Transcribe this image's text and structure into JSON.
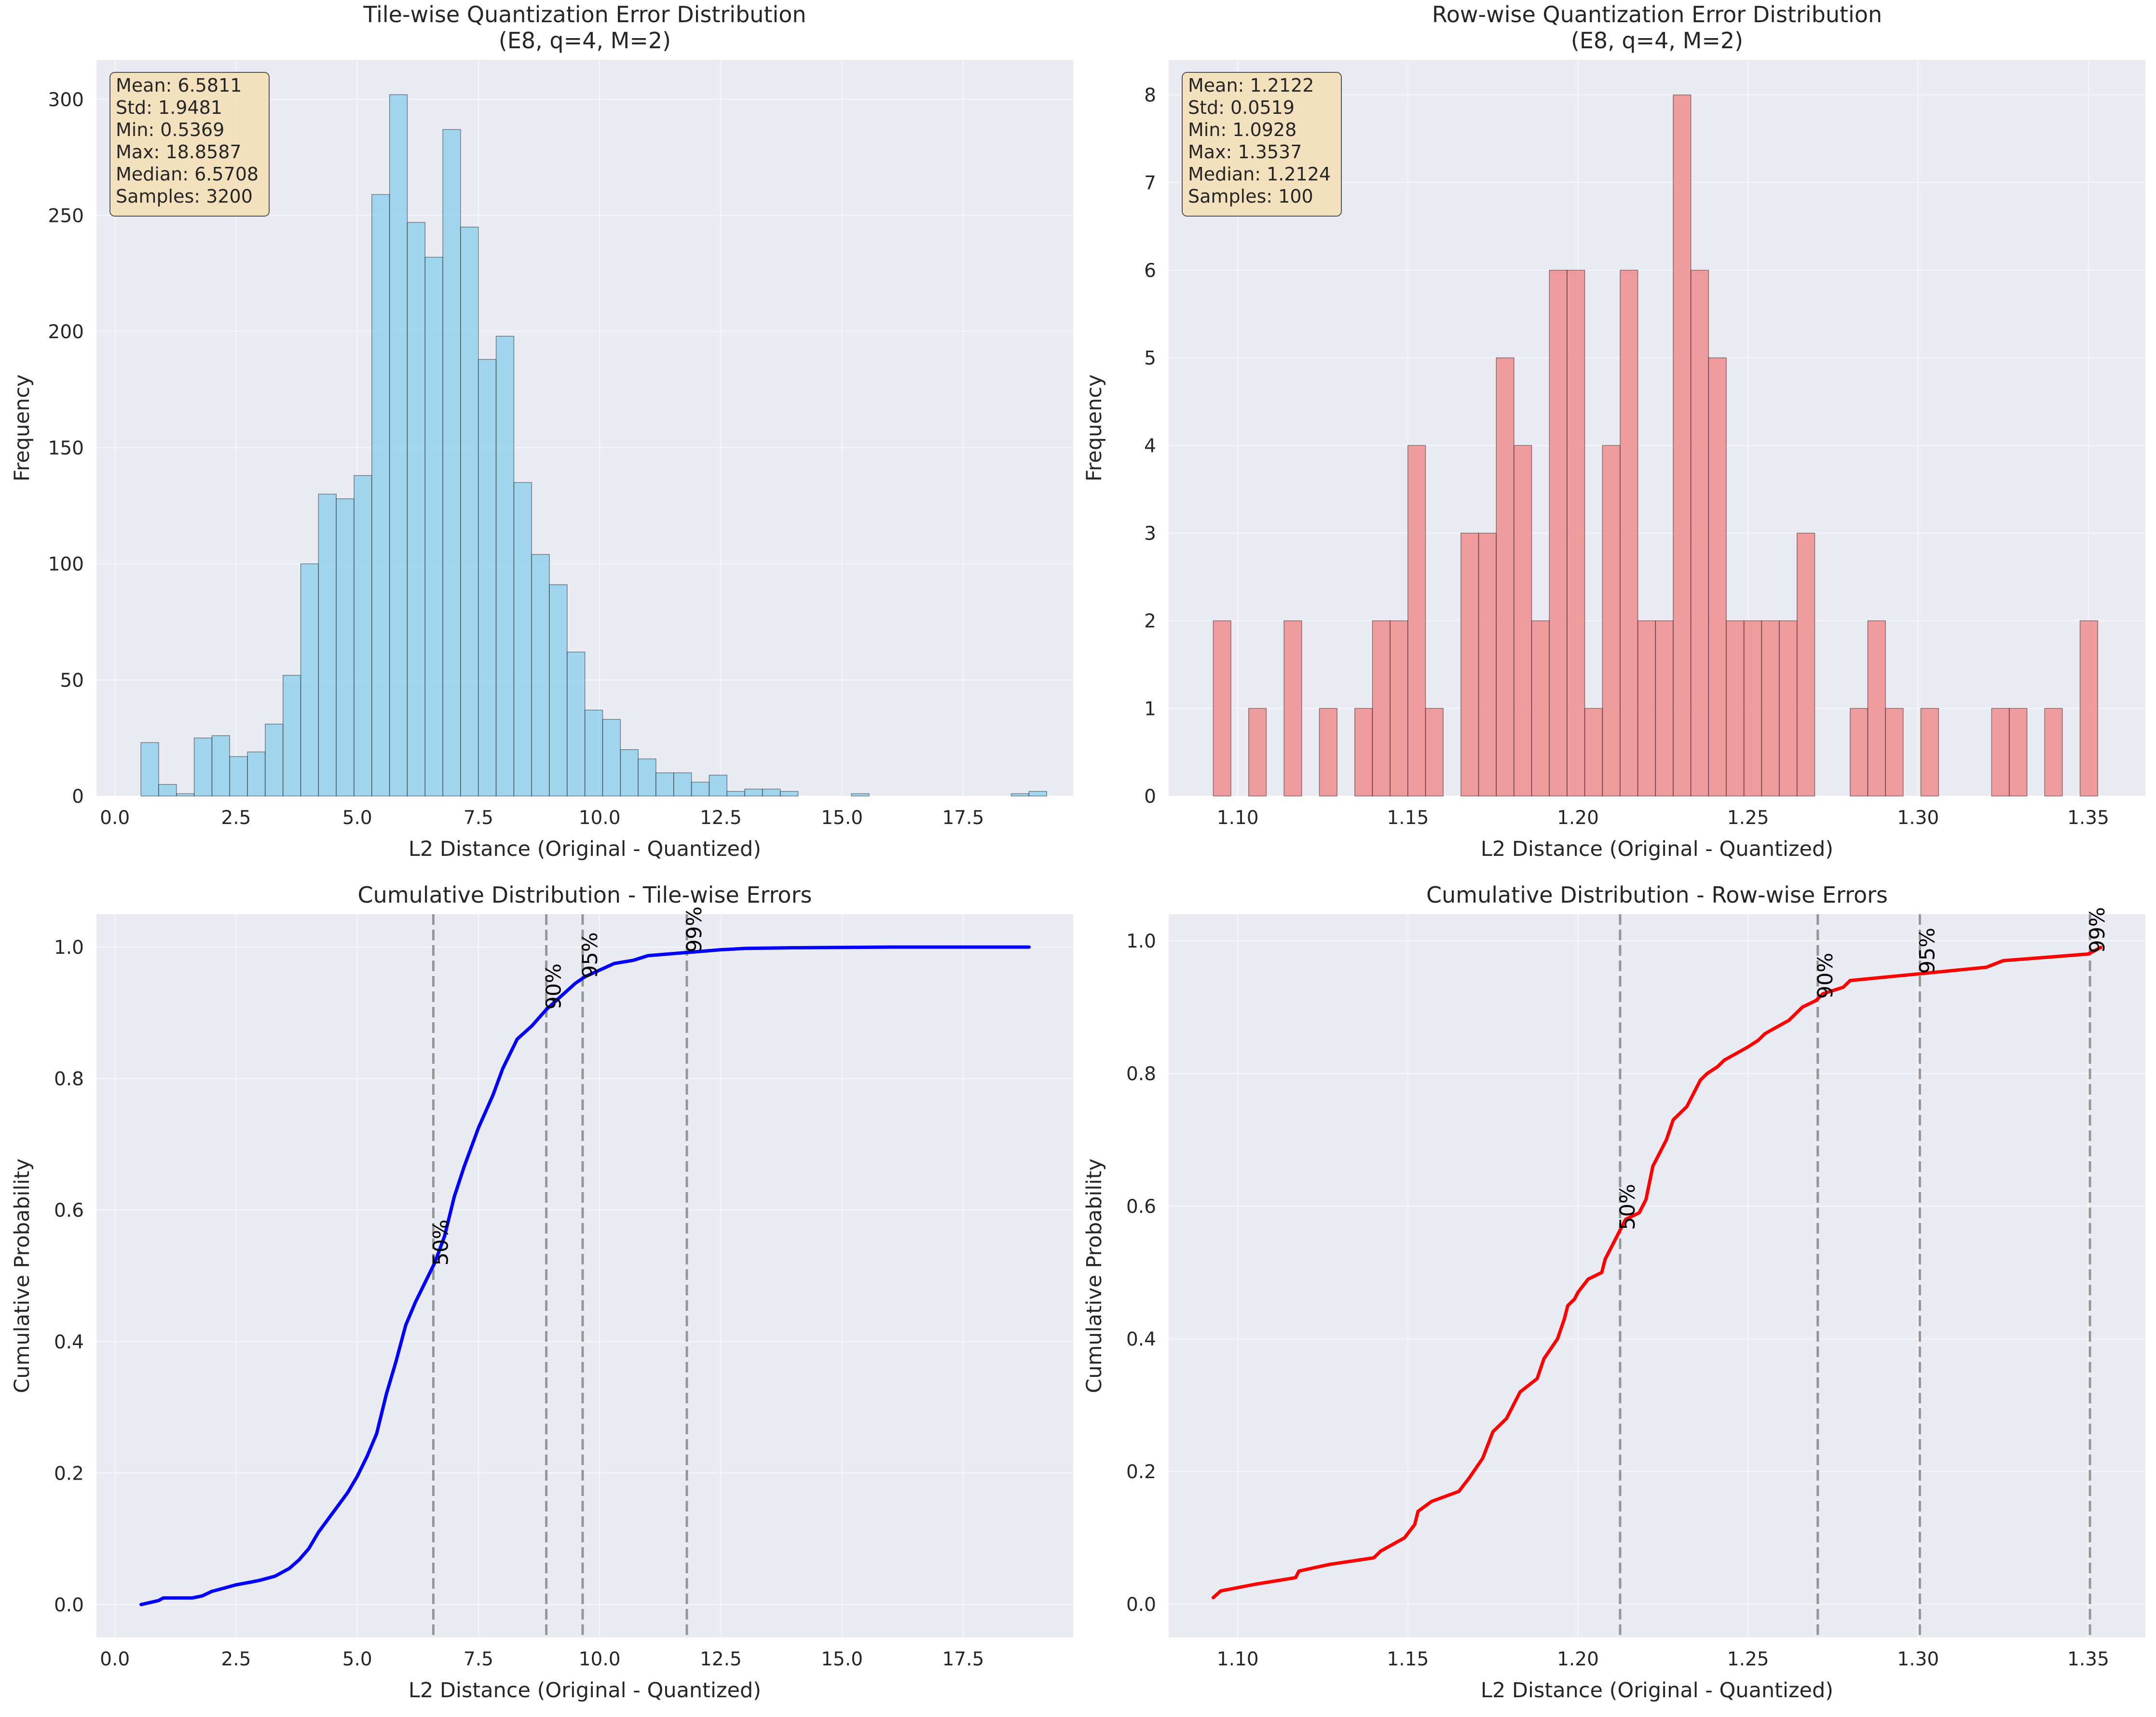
{
  "colors": {
    "axes_bg": "#eaeaf2",
    "grid": "#ffffff",
    "tile_bar": "#87ceeb",
    "row_bar": "#f08080",
    "bar_edge": "#000000",
    "tile_cdf": "#0000ff",
    "row_cdf": "#ff0000",
    "percentile_line": "#808080",
    "stats_box_fill": "#f5deb3"
  },
  "chart_data": [
    {
      "id": "tile_hist",
      "type": "bar",
      "title": "Tile-wise Quantization Error Distribution\n(E8, q=4, M=2)",
      "xlabel": "L2 Distance (Original - Quantized)",
      "ylabel": "Frequency",
      "xlim": [
        -0.38,
        19.77
      ],
      "ylim": [
        0,
        317
      ],
      "xticks": [
        0.0,
        2.5,
        5.0,
        7.5,
        10.0,
        12.5,
        15.0,
        17.5
      ],
      "xtick_labels": [
        "0.0",
        "2.5",
        "5.0",
        "7.5",
        "10.0",
        "12.5",
        "15.0",
        "17.5"
      ],
      "yticks": [
        0,
        50,
        100,
        150,
        200,
        250,
        300
      ],
      "ytick_labels": [
        "0",
        "50",
        "100",
        "150",
        "200",
        "250",
        "300"
      ],
      "grid": true,
      "bin_start": 0.5369,
      "bin_width": 0.3664,
      "values": [
        23,
        5,
        1,
        25,
        26,
        17,
        19,
        31,
        52,
        100,
        130,
        128,
        138,
        259,
        302,
        247,
        232,
        287,
        245,
        188,
        198,
        135,
        104,
        91,
        62,
        37,
        33,
        20,
        16,
        10,
        10,
        6,
        9,
        2,
        3,
        3,
        2,
        0,
        0,
        0,
        1,
        0,
        0,
        0,
        0,
        0,
        0,
        0,
        0,
        1,
        2
      ],
      "stats_box": {
        "lines": [
          "Mean: 6.5811",
          "Std: 1.9481",
          "Min: 0.5369",
          "Max: 18.8587",
          "Median: 6.5708",
          "Samples: 3200"
        ],
        "placement": "top-left"
      }
    },
    {
      "id": "row_hist",
      "type": "bar",
      "title": "Row-wise Quantization Error Distribution\n(E8, q=4, M=2)",
      "xlabel": "L2 Distance (Original - Quantized)",
      "ylabel": "Frequency",
      "xlim": [
        1.0797,
        1.3668
      ],
      "ylim": [
        0,
        8.4
      ],
      "xticks": [
        1.1,
        1.15,
        1.2,
        1.25,
        1.3,
        1.35
      ],
      "xtick_labels": [
        "1.10",
        "1.15",
        "1.20",
        "1.25",
        "1.30",
        "1.35"
      ],
      "yticks": [
        0,
        1,
        2,
        3,
        4,
        5,
        6,
        7,
        8
      ],
      "ytick_labels": [
        "0",
        "1",
        "2",
        "3",
        "4",
        "5",
        "6",
        "7",
        "8"
      ],
      "grid": true,
      "bin_start": 1.0928,
      "bin_width": 0.0052,
      "values": [
        2,
        0,
        1,
        0,
        2,
        0,
        1,
        0,
        1,
        2,
        2,
        4,
        1,
        0,
        3,
        3,
        5,
        4,
        2,
        6,
        6,
        1,
        4,
        6,
        2,
        2,
        8,
        6,
        5,
        2,
        2,
        2,
        2,
        3,
        0,
        0,
        1,
        2,
        1,
        0,
        1,
        0,
        0,
        0,
        1,
        1,
        0,
        1,
        0,
        2
      ],
      "stats_box": {
        "lines": [
          "Mean: 1.2122",
          "Std: 0.0519",
          "Min: 1.0928",
          "Max: 1.3537",
          "Median: 1.2124",
          "Samples: 100"
        ],
        "placement": "top-left"
      }
    },
    {
      "id": "tile_cdf",
      "type": "line",
      "title": "Cumulative Distribution - Tile-wise Errors",
      "xlabel": "L2 Distance (Original - Quantized)",
      "ylabel": "Cumulative Probability",
      "xlim": [
        -0.38,
        19.77
      ],
      "ylim": [
        -0.05,
        1.05
      ],
      "xticks": [
        0.0,
        2.5,
        5.0,
        7.5,
        10.0,
        12.5,
        15.0,
        17.5
      ],
      "xtick_labels": [
        "0.0",
        "2.5",
        "5.0",
        "7.5",
        "10.0",
        "12.5",
        "15.0",
        "17.5"
      ],
      "yticks": [
        0.0,
        0.2,
        0.4,
        0.6,
        0.8,
        1.0
      ],
      "ytick_labels": [
        "0.0",
        "0.2",
        "0.4",
        "0.6",
        "0.8",
        "1.0"
      ],
      "grid": true,
      "x": [
        0.54,
        0.9,
        1.0,
        1.6,
        1.8,
        2.0,
        2.2,
        2.5,
        2.8,
        3.0,
        3.3,
        3.6,
        3.8,
        4.0,
        4.2,
        4.4,
        4.6,
        4.8,
        5.0,
        5.2,
        5.4,
        5.6,
        5.8,
        6.0,
        6.2,
        6.4,
        6.6,
        6.8,
        7.0,
        7.2,
        7.5,
        7.8,
        8.0,
        8.3,
        8.6,
        8.9,
        9.2,
        9.5,
        9.7,
        10.0,
        10.3,
        10.7,
        11.0,
        11.5,
        12.0,
        12.5,
        13.0,
        14.0,
        16.0,
        18.86
      ],
      "values": [
        0.0,
        0.006,
        0.01,
        0.01,
        0.013,
        0.02,
        0.024,
        0.03,
        0.034,
        0.037,
        0.043,
        0.055,
        0.068,
        0.085,
        0.11,
        0.13,
        0.15,
        0.17,
        0.195,
        0.225,
        0.26,
        0.32,
        0.37,
        0.425,
        0.46,
        0.49,
        0.52,
        0.56,
        0.62,
        0.665,
        0.725,
        0.775,
        0.815,
        0.86,
        0.88,
        0.905,
        0.925,
        0.945,
        0.955,
        0.965,
        0.975,
        0.98,
        0.987,
        0.99,
        0.993,
        0.996,
        0.998,
        0.999,
        1.0,
        1.0
      ],
      "percentiles": [
        {
          "label": "50%",
          "x": 6.57
        },
        {
          "label": "90%",
          "x": 8.9
        },
        {
          "label": "95%",
          "x": 9.65
        },
        {
          "label": "99%",
          "x": 11.8
        }
      ]
    },
    {
      "id": "row_cdf",
      "type": "line",
      "title": "Cumulative Distribution - Row-wise Errors",
      "xlabel": "L2 Distance (Original - Quantized)",
      "ylabel": "Cumulative Probability",
      "xlim": [
        1.0797,
        1.3668
      ],
      "ylim": [
        -0.05,
        1.04
      ],
      "xticks": [
        1.1,
        1.15,
        1.2,
        1.25,
        1.3,
        1.35
      ],
      "xtick_labels": [
        "1.10",
        "1.15",
        "1.20",
        "1.25",
        "1.30",
        "1.35"
      ],
      "yticks": [
        0.0,
        0.2,
        0.4,
        0.6,
        0.8,
        1.0
      ],
      "ytick_labels": [
        "0.0",
        "0.2",
        "0.4",
        "0.6",
        "0.8",
        "1.0"
      ],
      "grid": true,
      "x": [
        1.0928,
        1.095,
        1.105,
        1.117,
        1.118,
        1.127,
        1.14,
        1.142,
        1.149,
        1.152,
        1.153,
        1.157,
        1.165,
        1.168,
        1.172,
        1.175,
        1.179,
        1.181,
        1.183,
        1.188,
        1.19,
        1.194,
        1.196,
        1.197,
        1.199,
        1.2,
        1.203,
        1.207,
        1.208,
        1.212,
        1.214,
        1.218,
        1.22,
        1.222,
        1.226,
        1.228,
        1.232,
        1.236,
        1.238,
        1.241,
        1.243,
        1.25,
        1.253,
        1.255,
        1.262,
        1.266,
        1.27,
        1.272,
        1.278,
        1.28,
        1.29,
        1.3,
        1.32,
        1.325,
        1.35,
        1.3537
      ],
      "values": [
        0.01,
        0.02,
        0.03,
        0.04,
        0.05,
        0.06,
        0.07,
        0.08,
        0.1,
        0.12,
        0.14,
        0.155,
        0.17,
        0.19,
        0.22,
        0.26,
        0.28,
        0.3,
        0.32,
        0.34,
        0.37,
        0.4,
        0.43,
        0.45,
        0.46,
        0.47,
        0.49,
        0.5,
        0.52,
        0.56,
        0.58,
        0.59,
        0.61,
        0.66,
        0.7,
        0.73,
        0.75,
        0.79,
        0.8,
        0.81,
        0.82,
        0.84,
        0.85,
        0.86,
        0.88,
        0.9,
        0.91,
        0.92,
        0.93,
        0.94,
        0.945,
        0.95,
        0.96,
        0.97,
        0.98,
        0.99
      ],
      "percentiles": [
        {
          "label": "50%",
          "x": 1.2124
        },
        {
          "label": "90%",
          "x": 1.2705
        },
        {
          "label": "95%",
          "x": 1.3005
        },
        {
          "label": "99%",
          "x": 1.3505
        }
      ]
    }
  ]
}
